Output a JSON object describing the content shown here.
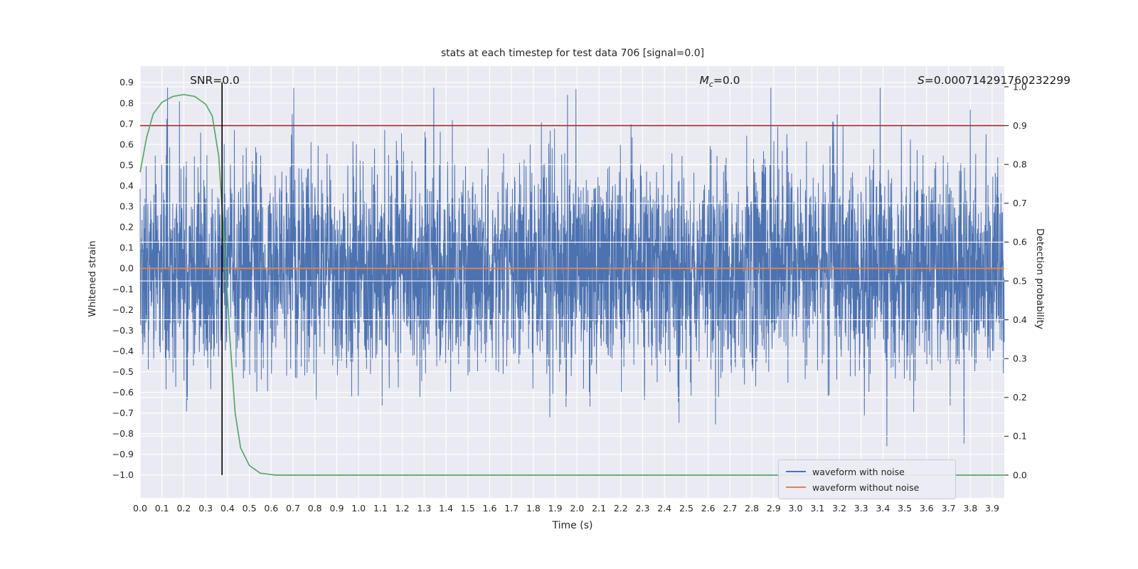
{
  "figure": {
    "title": "stats at each timestep for test data 706 [signal=0.0]"
  },
  "axes": {
    "x_label": "Time (s)",
    "y_left_label": "Whitened strain",
    "y_right_label": "Detection probability"
  },
  "annotations": {
    "snr": "SNR=0.0",
    "mc_var": "M",
    "mc_sub": "c",
    "mc_value": "=0.0",
    "s_var": "S",
    "s_value": "=0.000714291760232299"
  },
  "legend": {
    "items": [
      {
        "label": "waveform with noise",
        "color": "#4c72b0"
      },
      {
        "label": "waveform without noise",
        "color": "#dd8452"
      }
    ]
  },
  "chart_data": {
    "type": "line",
    "title": "stats at each timestep for test data 706 [signal=0.0]",
    "xlabel": "Time (s)",
    "ylabel_left": "Whitened strain",
    "ylabel_right": "Detection probability",
    "x_axis": {
      "min": 0.0,
      "max": 3.9,
      "step": 0.1
    },
    "y_left_axis": {
      "min": -1.0,
      "max": 0.9,
      "step": 0.1
    },
    "y_right_axis": {
      "min": 0.0,
      "max": 1.0,
      "step": 0.1
    },
    "xlim": [
      0.0,
      3.955
    ],
    "grid": true,
    "legend_position": "lower right",
    "colors": {
      "background": "#eaeaf2",
      "gridline": "#ffffff",
      "text": "#262626"
    },
    "series": [
      {
        "name": "waveform with noise",
        "kind": "gaussian-noise",
        "axis": "left",
        "color": "#4c72b0",
        "n": 4000,
        "mean": 0.0,
        "std": 0.26,
        "seed": 706,
        "clip": [
          -0.98,
          0.875
        ]
      },
      {
        "name": "waveform without noise",
        "kind": "constant",
        "axis": "left",
        "color": "#dd8452",
        "value": 0.0
      },
      {
        "name": "detection probability",
        "kind": "line",
        "axis": "right",
        "color": "#55a868",
        "x": [
          0.0,
          0.03,
          0.06,
          0.1,
          0.15,
          0.2,
          0.25,
          0.3,
          0.33,
          0.36,
          0.385,
          0.41,
          0.435,
          0.46,
          0.5,
          0.55,
          0.62,
          3.955
        ],
        "y": [
          0.78,
          0.87,
          0.93,
          0.96,
          0.975,
          0.98,
          0.975,
          0.955,
          0.925,
          0.82,
          0.6,
          0.36,
          0.16,
          0.07,
          0.025,
          0.005,
          0.0,
          0.0
        ]
      },
      {
        "name": "detection threshold",
        "kind": "hline",
        "axis": "right",
        "color": "#a02c2c",
        "value": 0.9
      },
      {
        "name": "event time marker",
        "kind": "vline",
        "axis": "left",
        "color": "#000000",
        "x": 0.375,
        "y_from": -1.0,
        "y_to": 0.9
      }
    ]
  }
}
